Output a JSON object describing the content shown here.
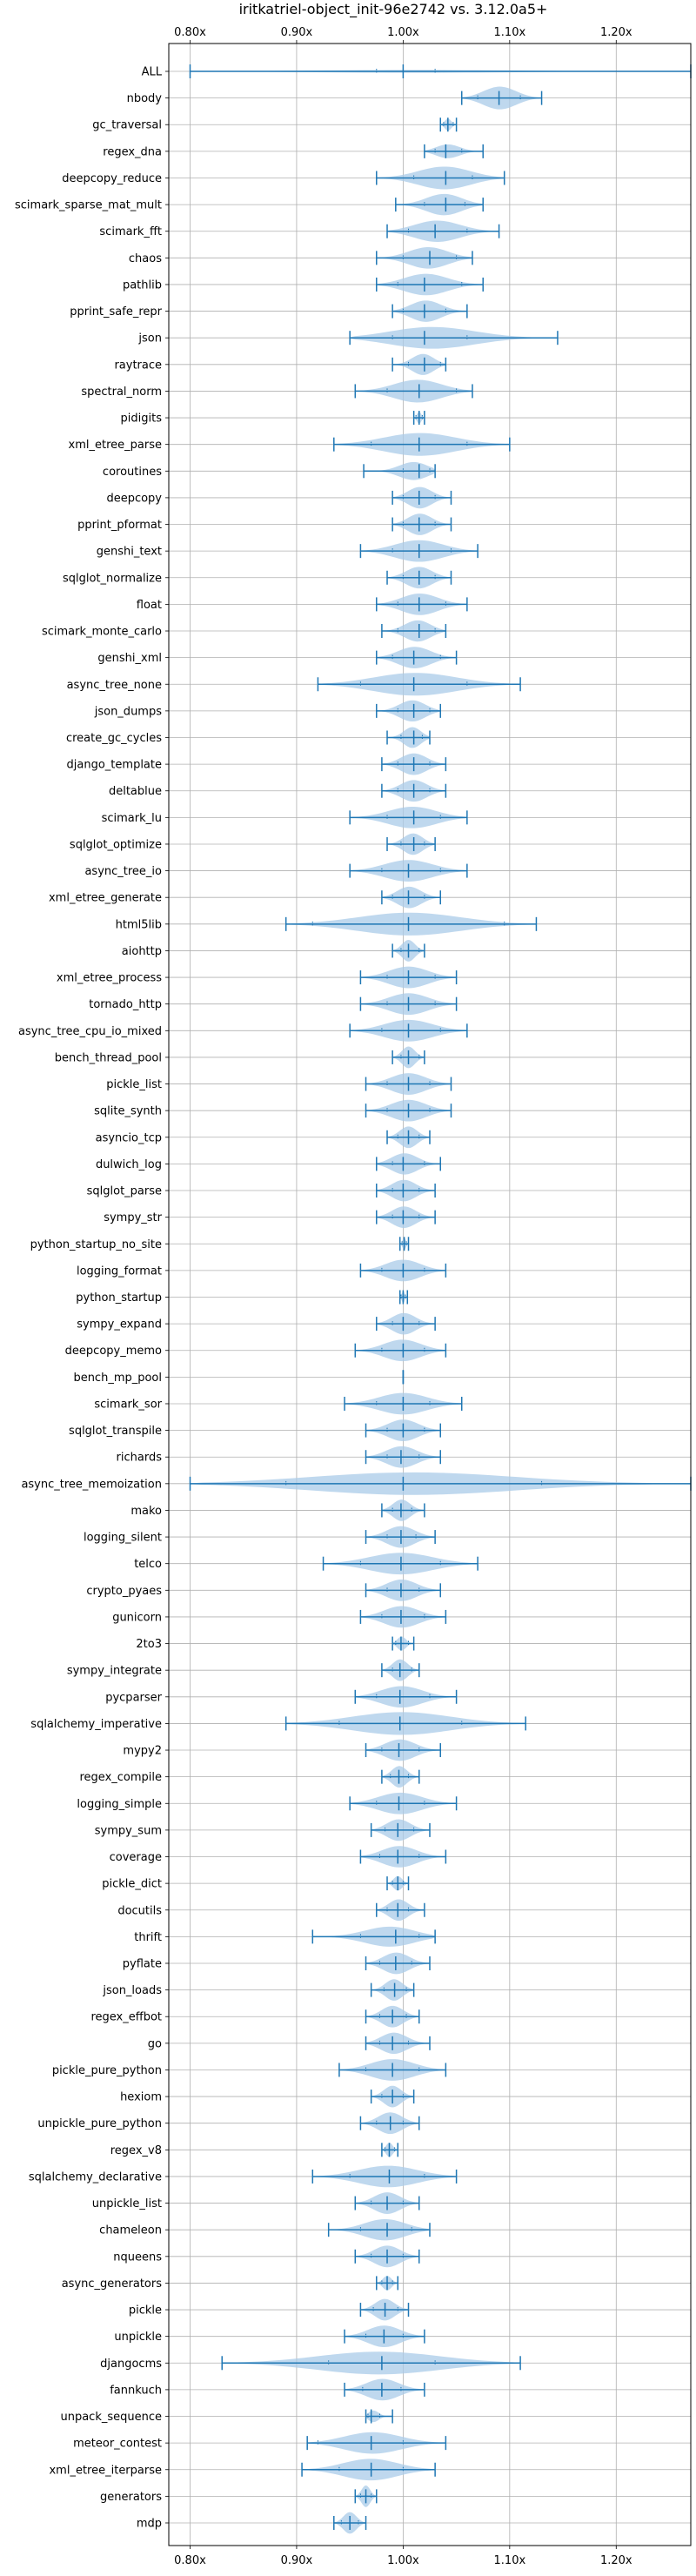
{
  "chart_data": {
    "type": "violin",
    "title": "iritkatriel-object_init-96e2742 vs. 3.12.0a5+",
    "xlabel": "",
    "ylabel": "",
    "xlim": [
      0.78,
      1.27
    ],
    "xticks": [
      0.8,
      0.9,
      1.0,
      1.1,
      1.2
    ],
    "xtick_labels": [
      "0.80x",
      "0.90x",
      "1.00x",
      "1.10x",
      "1.20x"
    ],
    "grid": true,
    "color": "#1f77b4",
    "fill_color": "#aacbe8",
    "categories": [
      "ALL",
      "nbody",
      "gc_traversal",
      "regex_dna",
      "deepcopy_reduce",
      "scimark_sparse_mat_mult",
      "scimark_fft",
      "chaos",
      "pathlib",
      "pprint_safe_repr",
      "json",
      "raytrace",
      "spectral_norm",
      "pidigits",
      "xml_etree_parse",
      "coroutines",
      "deepcopy",
      "pprint_pformat",
      "genshi_text",
      "sqlglot_normalize",
      "float",
      "scimark_monte_carlo",
      "genshi_xml",
      "async_tree_none",
      "json_dumps",
      "create_gc_cycles",
      "django_template",
      "deltablue",
      "scimark_lu",
      "sqlglot_optimize",
      "async_tree_io",
      "xml_etree_generate",
      "html5lib",
      "aiohttp",
      "xml_etree_process",
      "tornado_http",
      "async_tree_cpu_io_mixed",
      "bench_thread_pool",
      "pickle_list",
      "sqlite_synth",
      "asyncio_tcp",
      "dulwich_log",
      "sqlglot_parse",
      "sympy_str",
      "python_startup_no_site",
      "logging_format",
      "python_startup",
      "sympy_expand",
      "deepcopy_memo",
      "bench_mp_pool",
      "scimark_sor",
      "sqlglot_transpile",
      "richards",
      "async_tree_memoization",
      "mako",
      "logging_silent",
      "telco",
      "crypto_pyaes",
      "gunicorn",
      "2to3",
      "sympy_integrate",
      "pycparser",
      "sqlalchemy_imperative",
      "mypy2",
      "regex_compile",
      "logging_simple",
      "sympy_sum",
      "coverage",
      "pickle_dict",
      "docutils",
      "thrift",
      "pyflate",
      "json_loads",
      "regex_effbot",
      "go",
      "pickle_pure_python",
      "hexiom",
      "unpickle_pure_python",
      "regex_v8",
      "sqlalchemy_declarative",
      "unpickle_list",
      "chameleon",
      "nqueens",
      "async_generators",
      "pickle",
      "unpickle",
      "djangocms",
      "fannkuch",
      "unpack_sequence",
      "meteor_contest",
      "xml_etree_iterparse",
      "generators",
      "mdp"
    ],
    "series": [
      {
        "name": "ALL",
        "min": 0.8,
        "max": 1.27,
        "median": 1.0,
        "q1": 0.975,
        "q3": 1.03,
        "width": 0.12
      },
      {
        "name": "nbody",
        "min": 1.055,
        "max": 1.13,
        "median": 1.09,
        "q1": 1.07,
        "q3": 1.11,
        "width": 0.95
      },
      {
        "name": "gc_traversal",
        "min": 1.035,
        "max": 1.05,
        "median": 1.042,
        "q1": 1.038,
        "q3": 1.047,
        "width": 0.5
      },
      {
        "name": "regex_dna",
        "min": 1.02,
        "max": 1.075,
        "median": 1.04,
        "q1": 1.03,
        "q3": 1.055,
        "width": 0.6
      },
      {
        "name": "deepcopy_reduce",
        "min": 0.975,
        "max": 1.095,
        "median": 1.04,
        "q1": 1.01,
        "q3": 1.065,
        "width": 0.95
      },
      {
        "name": "scimark_sparse_mat_mult",
        "min": 0.993,
        "max": 1.075,
        "median": 1.04,
        "q1": 1.02,
        "q3": 1.058,
        "width": 0.9
      },
      {
        "name": "scimark_fft",
        "min": 0.985,
        "max": 1.09,
        "median": 1.03,
        "q1": 1.005,
        "q3": 1.06,
        "width": 0.9
      },
      {
        "name": "chaos",
        "min": 0.975,
        "max": 1.065,
        "median": 1.025,
        "q1": 1.0,
        "q3": 1.05,
        "width": 0.9
      },
      {
        "name": "pathlib",
        "min": 0.975,
        "max": 1.075,
        "median": 1.02,
        "q1": 0.995,
        "q3": 1.055,
        "width": 0.9
      },
      {
        "name": "pprint_safe_repr",
        "min": 0.99,
        "max": 1.06,
        "median": 1.02,
        "q1": 1.0,
        "q3": 1.04,
        "width": 0.9
      },
      {
        "name": "json",
        "min": 0.95,
        "max": 1.145,
        "median": 1.02,
        "q1": 0.99,
        "q3": 1.06,
        "width": 0.95
      },
      {
        "name": "raytrace",
        "min": 0.99,
        "max": 1.04,
        "median": 1.02,
        "q1": 1.005,
        "q3": 1.035,
        "width": 0.9
      },
      {
        "name": "spectral_norm",
        "min": 0.955,
        "max": 1.065,
        "median": 1.015,
        "q1": 0.985,
        "q3": 1.05,
        "width": 0.95
      },
      {
        "name": "pidigits",
        "min": 1.01,
        "max": 1.02,
        "median": 1.015,
        "q1": 1.012,
        "q3": 1.018,
        "width": 0.5
      },
      {
        "name": "xml_etree_parse",
        "min": 0.935,
        "max": 1.1,
        "median": 1.015,
        "q1": 0.97,
        "q3": 1.06,
        "width": 0.95
      },
      {
        "name": "coroutines",
        "min": 0.963,
        "max": 1.03,
        "median": 1.015,
        "q1": 1.0,
        "q3": 1.025,
        "width": 0.9
      },
      {
        "name": "deepcopy",
        "min": 0.99,
        "max": 1.045,
        "median": 1.015,
        "q1": 1.0,
        "q3": 1.03,
        "width": 0.9
      },
      {
        "name": "pprint_pformat",
        "min": 0.99,
        "max": 1.045,
        "median": 1.015,
        "q1": 1.0,
        "q3": 1.03,
        "width": 0.9
      },
      {
        "name": "genshi_text",
        "min": 0.96,
        "max": 1.07,
        "median": 1.015,
        "q1": 0.99,
        "q3": 1.045,
        "width": 0.9
      },
      {
        "name": "sqlglot_normalize",
        "min": 0.985,
        "max": 1.045,
        "median": 1.015,
        "q1": 1.0,
        "q3": 1.03,
        "width": 0.9
      },
      {
        "name": "float",
        "min": 0.975,
        "max": 1.06,
        "median": 1.015,
        "q1": 0.995,
        "q3": 1.04,
        "width": 0.9
      },
      {
        "name": "scimark_monte_carlo",
        "min": 0.98,
        "max": 1.04,
        "median": 1.015,
        "q1": 0.995,
        "q3": 1.03,
        "width": 0.9
      },
      {
        "name": "genshi_xml",
        "min": 0.975,
        "max": 1.05,
        "median": 1.01,
        "q1": 0.99,
        "q3": 1.035,
        "width": 0.9
      },
      {
        "name": "async_tree_none",
        "min": 0.92,
        "max": 1.11,
        "median": 1.01,
        "q1": 0.96,
        "q3": 1.06,
        "width": 0.95
      },
      {
        "name": "json_dumps",
        "min": 0.975,
        "max": 1.035,
        "median": 1.01,
        "q1": 0.995,
        "q3": 1.025,
        "width": 0.9
      },
      {
        "name": "create_gc_cycles",
        "min": 0.985,
        "max": 1.025,
        "median": 1.01,
        "q1": 0.998,
        "q3": 1.018,
        "width": 0.9
      },
      {
        "name": "django_template",
        "min": 0.98,
        "max": 1.04,
        "median": 1.01,
        "q1": 0.995,
        "q3": 1.025,
        "width": 0.9
      },
      {
        "name": "deltablue",
        "min": 0.98,
        "max": 1.04,
        "median": 1.01,
        "q1": 0.995,
        "q3": 1.025,
        "width": 0.9
      },
      {
        "name": "scimark_lu",
        "min": 0.95,
        "max": 1.06,
        "median": 1.01,
        "q1": 0.985,
        "q3": 1.035,
        "width": 0.9
      },
      {
        "name": "sqlglot_optimize",
        "min": 0.985,
        "max": 1.03,
        "median": 1.01,
        "q1": 0.998,
        "q3": 1.02,
        "width": 0.9
      },
      {
        "name": "async_tree_io",
        "min": 0.95,
        "max": 1.06,
        "median": 1.005,
        "q1": 0.98,
        "q3": 1.035,
        "width": 0.9
      },
      {
        "name": "xml_etree_generate",
        "min": 0.98,
        "max": 1.035,
        "median": 1.005,
        "q1": 0.99,
        "q3": 1.02,
        "width": 0.9
      },
      {
        "name": "html5lib",
        "min": 0.89,
        "max": 1.125,
        "median": 1.005,
        "q1": 0.915,
        "q3": 1.095,
        "width": 0.95
      },
      {
        "name": "aiohttp",
        "min": 0.99,
        "max": 1.02,
        "median": 1.005,
        "q1": 0.998,
        "q3": 1.015,
        "width": 0.9
      },
      {
        "name": "xml_etree_process",
        "min": 0.96,
        "max": 1.05,
        "median": 1.005,
        "q1": 0.985,
        "q3": 1.03,
        "width": 0.9
      },
      {
        "name": "tornado_http",
        "min": 0.96,
        "max": 1.05,
        "median": 1.005,
        "q1": 0.985,
        "q3": 1.03,
        "width": 0.9
      },
      {
        "name": "async_tree_cpu_io_mixed",
        "min": 0.95,
        "max": 1.06,
        "median": 1.005,
        "q1": 0.98,
        "q3": 1.035,
        "width": 0.9
      },
      {
        "name": "bench_thread_pool",
        "min": 0.99,
        "max": 1.02,
        "median": 1.005,
        "q1": 0.998,
        "q3": 1.015,
        "width": 0.9
      },
      {
        "name": "pickle_list",
        "min": 0.965,
        "max": 1.045,
        "median": 1.005,
        "q1": 0.985,
        "q3": 1.025,
        "width": 0.9
      },
      {
        "name": "sqlite_synth",
        "min": 0.965,
        "max": 1.045,
        "median": 1.005,
        "q1": 0.985,
        "q3": 1.025,
        "width": 0.9
      },
      {
        "name": "asyncio_tcp",
        "min": 0.985,
        "max": 1.025,
        "median": 1.005,
        "q1": 0.995,
        "q3": 1.015,
        "width": 0.9
      },
      {
        "name": "dulwich_log",
        "min": 0.975,
        "max": 1.035,
        "median": 1.0,
        "q1": 0.99,
        "q3": 1.02,
        "width": 0.9
      },
      {
        "name": "sqlglot_parse",
        "min": 0.975,
        "max": 1.03,
        "median": 1.0,
        "q1": 0.99,
        "q3": 1.015,
        "width": 0.9
      },
      {
        "name": "sympy_str",
        "min": 0.975,
        "max": 1.03,
        "median": 1.0,
        "q1": 0.99,
        "q3": 1.015,
        "width": 0.9
      },
      {
        "name": "python_startup_no_site",
        "min": 0.997,
        "max": 1.005,
        "median": 1.001,
        "q1": 0.999,
        "q3": 1.003,
        "width": 0.5
      },
      {
        "name": "logging_format",
        "min": 0.96,
        "max": 1.04,
        "median": 1.0,
        "q1": 0.98,
        "q3": 1.02,
        "width": 0.9
      },
      {
        "name": "python_startup",
        "min": 0.997,
        "max": 1.004,
        "median": 1.0,
        "q1": 0.998,
        "q3": 1.002,
        "width": 0.5
      },
      {
        "name": "sympy_expand",
        "min": 0.975,
        "max": 1.03,
        "median": 1.0,
        "q1": 0.99,
        "q3": 1.015,
        "width": 0.9
      },
      {
        "name": "deepcopy_memo",
        "min": 0.955,
        "max": 1.04,
        "median": 1.0,
        "q1": 0.98,
        "q3": 1.02,
        "width": 0.9
      },
      {
        "name": "bench_mp_pool",
        "min": 1.0,
        "max": 1.0,
        "median": 1.0,
        "q1": 1.0,
        "q3": 1.0,
        "width": 0.0
      },
      {
        "name": "scimark_sor",
        "min": 0.945,
        "max": 1.055,
        "median": 1.0,
        "q1": 0.975,
        "q3": 1.025,
        "width": 0.9
      },
      {
        "name": "sqlglot_transpile",
        "min": 0.965,
        "max": 1.035,
        "median": 1.0,
        "q1": 0.985,
        "q3": 1.02,
        "width": 0.9
      },
      {
        "name": "richards",
        "min": 0.965,
        "max": 1.035,
        "median": 0.998,
        "q1": 0.985,
        "q3": 1.015,
        "width": 0.9
      },
      {
        "name": "async_tree_memoization",
        "min": 0.8,
        "max": 1.27,
        "median": 1.0,
        "q1": 0.89,
        "q3": 1.13,
        "width": 0.95
      },
      {
        "name": "mako",
        "min": 0.98,
        "max": 1.02,
        "median": 0.998,
        "q1": 0.99,
        "q3": 1.008,
        "width": 0.9
      },
      {
        "name": "logging_silent",
        "min": 0.965,
        "max": 1.03,
        "median": 0.998,
        "q1": 0.985,
        "q3": 1.012,
        "width": 0.9
      },
      {
        "name": "telco",
        "min": 0.925,
        "max": 1.07,
        "median": 0.998,
        "q1": 0.96,
        "q3": 1.035,
        "width": 0.9
      },
      {
        "name": "crypto_pyaes",
        "min": 0.965,
        "max": 1.035,
        "median": 0.998,
        "q1": 0.985,
        "q3": 1.015,
        "width": 0.9
      },
      {
        "name": "gunicorn",
        "min": 0.96,
        "max": 1.04,
        "median": 0.998,
        "q1": 0.98,
        "q3": 1.02,
        "width": 0.9
      },
      {
        "name": "2to3",
        "min": 0.99,
        "max": 1.01,
        "median": 0.998,
        "q1": 0.993,
        "q3": 1.005,
        "width": 0.6
      },
      {
        "name": "sympy_integrate",
        "min": 0.98,
        "max": 1.015,
        "median": 0.997,
        "q1": 0.99,
        "q3": 1.008,
        "width": 0.9
      },
      {
        "name": "pycparser",
        "min": 0.955,
        "max": 1.05,
        "median": 0.997,
        "q1": 0.975,
        "q3": 1.025,
        "width": 0.9
      },
      {
        "name": "sqlalchemy_imperative",
        "min": 0.89,
        "max": 1.115,
        "median": 0.997,
        "q1": 0.94,
        "q3": 1.055,
        "width": 0.95
      },
      {
        "name": "mypy2",
        "min": 0.965,
        "max": 1.035,
        "median": 0.996,
        "q1": 0.98,
        "q3": 1.015,
        "width": 0.9
      },
      {
        "name": "regex_compile",
        "min": 0.98,
        "max": 1.015,
        "median": 0.996,
        "q1": 0.988,
        "q3": 1.005,
        "width": 0.9
      },
      {
        "name": "logging_simple",
        "min": 0.95,
        "max": 1.05,
        "median": 0.996,
        "q1": 0.975,
        "q3": 1.02,
        "width": 0.9
      },
      {
        "name": "sympy_sum",
        "min": 0.97,
        "max": 1.025,
        "median": 0.995,
        "q1": 0.983,
        "q3": 1.01,
        "width": 0.9
      },
      {
        "name": "coverage",
        "min": 0.96,
        "max": 1.04,
        "median": 0.995,
        "q1": 0.978,
        "q3": 1.015,
        "width": 0.9
      },
      {
        "name": "pickle_dict",
        "min": 0.985,
        "max": 1.005,
        "median": 0.995,
        "q1": 0.99,
        "q3": 1.0,
        "width": 0.6
      },
      {
        "name": "docutils",
        "min": 0.975,
        "max": 1.02,
        "median": 0.995,
        "q1": 0.985,
        "q3": 1.005,
        "width": 0.9
      },
      {
        "name": "thrift",
        "min": 0.915,
        "max": 1.03,
        "median": 0.993,
        "q1": 0.96,
        "q3": 1.015,
        "width": 0.9
      },
      {
        "name": "pyflate",
        "min": 0.965,
        "max": 1.025,
        "median": 0.993,
        "q1": 0.978,
        "q3": 1.008,
        "width": 0.9
      },
      {
        "name": "json_loads",
        "min": 0.97,
        "max": 1.01,
        "median": 0.992,
        "q1": 0.982,
        "q3": 1.003,
        "width": 0.9
      },
      {
        "name": "regex_effbot",
        "min": 0.965,
        "max": 1.015,
        "median": 0.99,
        "q1": 0.978,
        "q3": 1.003,
        "width": 0.9
      },
      {
        "name": "go",
        "min": 0.965,
        "max": 1.025,
        "median": 0.99,
        "q1": 0.978,
        "q3": 1.005,
        "width": 0.9
      },
      {
        "name": "pickle_pure_python",
        "min": 0.94,
        "max": 1.04,
        "median": 0.99,
        "q1": 0.965,
        "q3": 1.015,
        "width": 0.9
      },
      {
        "name": "hexiom",
        "min": 0.97,
        "max": 1.01,
        "median": 0.99,
        "q1": 0.98,
        "q3": 1.0,
        "width": 0.9
      },
      {
        "name": "unpickle_pure_python",
        "min": 0.96,
        "max": 1.015,
        "median": 0.988,
        "q1": 0.975,
        "q3": 1.0,
        "width": 0.9
      },
      {
        "name": "regex_v8",
        "min": 0.98,
        "max": 0.995,
        "median": 0.987,
        "q1": 0.983,
        "q3": 0.992,
        "width": 0.6
      },
      {
        "name": "sqlalchemy_declarative",
        "min": 0.915,
        "max": 1.05,
        "median": 0.987,
        "q1": 0.95,
        "q3": 1.02,
        "width": 0.9
      },
      {
        "name": "unpickle_list",
        "min": 0.955,
        "max": 1.015,
        "median": 0.985,
        "q1": 0.97,
        "q3": 1.0,
        "width": 0.9
      },
      {
        "name": "chameleon",
        "min": 0.93,
        "max": 1.025,
        "median": 0.985,
        "q1": 0.96,
        "q3": 1.008,
        "width": 0.9
      },
      {
        "name": "nqueens",
        "min": 0.955,
        "max": 1.015,
        "median": 0.985,
        "q1": 0.97,
        "q3": 1.0,
        "width": 0.9
      },
      {
        "name": "async_generators",
        "min": 0.975,
        "max": 0.995,
        "median": 0.985,
        "q1": 0.98,
        "q3": 0.99,
        "width": 0.6
      },
      {
        "name": "pickle",
        "min": 0.96,
        "max": 1.005,
        "median": 0.983,
        "q1": 0.972,
        "q3": 0.995,
        "width": 0.9
      },
      {
        "name": "unpickle",
        "min": 0.945,
        "max": 1.02,
        "median": 0.982,
        "q1": 0.965,
        "q3": 1.0,
        "width": 0.9
      },
      {
        "name": "djangocms",
        "min": 0.83,
        "max": 1.11,
        "median": 0.98,
        "q1": 0.93,
        "q3": 1.03,
        "width": 0.95
      },
      {
        "name": "fannkuch",
        "min": 0.945,
        "max": 1.02,
        "median": 0.98,
        "q1": 0.962,
        "q3": 0.998,
        "width": 0.9
      },
      {
        "name": "unpack_sequence",
        "min": 0.965,
        "max": 0.99,
        "median": 0.97,
        "q1": 0.967,
        "q3": 0.978,
        "width": 0.6
      },
      {
        "name": "meteor_contest",
        "min": 0.91,
        "max": 1.04,
        "median": 0.97,
        "q1": 0.92,
        "q3": 1.0,
        "width": 0.9
      },
      {
        "name": "xml_etree_iterparse",
        "min": 0.905,
        "max": 1.03,
        "median": 0.97,
        "q1": 0.94,
        "q3": 1.0,
        "width": 0.9
      },
      {
        "name": "generators",
        "min": 0.955,
        "max": 0.975,
        "median": 0.965,
        "q1": 0.96,
        "q3": 0.97,
        "width": 0.9
      },
      {
        "name": "mdp",
        "min": 0.935,
        "max": 0.965,
        "median": 0.95,
        "q1": 0.942,
        "q3": 0.958,
        "width": 0.9
      }
    ]
  }
}
